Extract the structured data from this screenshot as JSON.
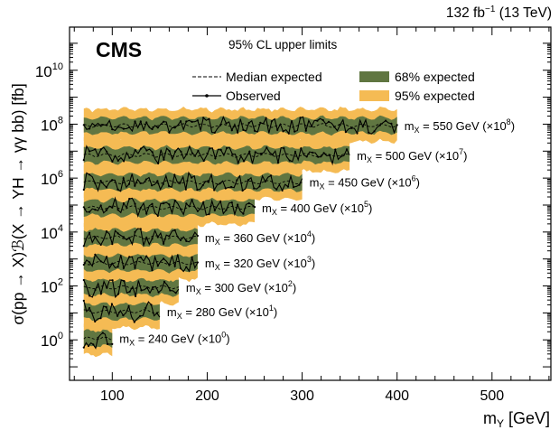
{
  "chart_data": {
    "type": "line",
    "luminosity": "132 fb",
    "luminosity_sup": "−1",
    "energy": " (13 TeV)",
    "experiment": "CMS",
    "subtitle": "95% CL upper limits",
    "xlabel_main": "m",
    "xlabel_sub": "Y",
    "xlabel_unit": " [GeV]",
    "ylabel": "σ(pp → X)ℬ(X → YH → γγ bb) [fb]",
    "xlim": [
      55,
      562
    ],
    "ylim_log10": [
      -1.5,
      11.6
    ],
    "x_ticks": [
      "100",
      "200",
      "300",
      "400",
      "500"
    ],
    "x_tick_values": [
      100,
      200,
      300,
      400,
      500
    ],
    "y_ticks": [
      {
        "base": "10",
        "exp": "0",
        "value": 0
      },
      {
        "base": "10",
        "exp": "2",
        "value": 2
      },
      {
        "base": "10",
        "exp": "4",
        "value": 4
      },
      {
        "base": "10",
        "exp": "6",
        "value": 6
      },
      {
        "base": "10",
        "exp": "8",
        "value": 8
      },
      {
        "base": "10",
        "exp": "10",
        "value": 10
      }
    ],
    "legend": [
      {
        "label": "Median expected",
        "style": "dashed"
      },
      {
        "label": "Observed",
        "style": "observed"
      },
      {
        "label": "68% expected",
        "style": "band68"
      },
      {
        "label": "95% expected",
        "style": "band95"
      }
    ],
    "colors": {
      "band68": "#607641",
      "band95": "#F5BB54",
      "line": "#000000"
    },
    "series": [
      {
        "mx": "240",
        "scale_exp": "0",
        "x_max": 100,
        "median_log10": 0.05,
        "band68": 0.28,
        "band95": 0.62,
        "observed_noise": 0.35
      },
      {
        "mx": "280",
        "scale_exp": "1",
        "x_max": 150,
        "median_log10": 1.05,
        "band68": 0.28,
        "band95": 0.62,
        "observed_noise": 0.35
      },
      {
        "mx": "300",
        "scale_exp": "2",
        "x_max": 170,
        "median_log10": 1.95,
        "band68": 0.28,
        "band95": 0.62,
        "observed_noise": 0.33
      },
      {
        "mx": "320",
        "scale_exp": "3",
        "x_max": 190,
        "median_log10": 2.85,
        "band68": 0.28,
        "band95": 0.62,
        "observed_noise": 0.33
      },
      {
        "mx": "360",
        "scale_exp": "4",
        "x_max": 190,
        "median_log10": 3.8,
        "band68": 0.28,
        "band95": 0.62,
        "observed_noise": 0.3
      },
      {
        "mx": "400",
        "scale_exp": "5",
        "x_max": 250,
        "median_log10": 4.9,
        "band68": 0.28,
        "band95": 0.62,
        "observed_noise": 0.3
      },
      {
        "mx": "450",
        "scale_exp": "6",
        "x_max": 300,
        "median_log10": 5.85,
        "band68": 0.28,
        "band95": 0.62,
        "observed_noise": 0.32
      },
      {
        "mx": "500",
        "scale_exp": "7",
        "x_max": 350,
        "median_log10": 6.85,
        "band68": 0.28,
        "band95": 0.62,
        "observed_noise": 0.3
      },
      {
        "mx": "550",
        "scale_exp": "8",
        "x_max": 400,
        "median_log10": 7.95,
        "band68": 0.28,
        "band95": 0.62,
        "observed_noise": 0.28
      }
    ],
    "x_start": 70
  }
}
